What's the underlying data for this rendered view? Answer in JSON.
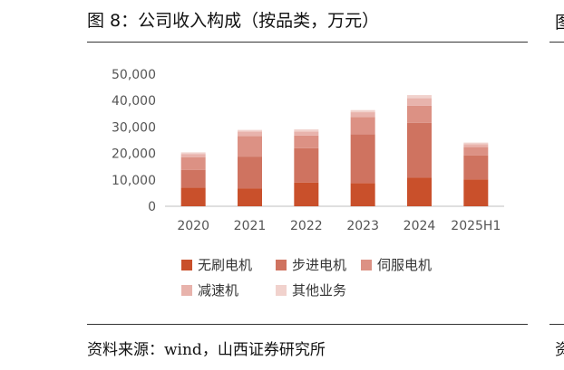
{
  "header": {
    "title": "图 8：公司收入构成（按品类，万元）",
    "source": "资料来源：wind，山西证券研究所",
    "right_glyph_top": "图",
    "right_glyph_bottom": "资"
  },
  "chart_data": {
    "type": "bar",
    "stacked": true,
    "categories": [
      "2020",
      "2021",
      "2022",
      "2023",
      "2024",
      "2025H1"
    ],
    "series": [
      {
        "name": "无刷电机",
        "color": "#c9502b",
        "values": [
          7000,
          6800,
          9000,
          8800,
          10800,
          10200
        ]
      },
      {
        "name": "步进电机",
        "color": "#cf7360",
        "values": [
          6800,
          12000,
          13000,
          18500,
          20800,
          9000
        ]
      },
      {
        "name": "伺服电机",
        "color": "#dc9184",
        "values": [
          4800,
          7800,
          4800,
          6500,
          6500,
          3200
        ]
      },
      {
        "name": "减速机",
        "color": "#e8b3ac",
        "values": [
          1200,
          1700,
          1500,
          1800,
          2800,
          1100
        ]
      },
      {
        "name": "其他业务",
        "color": "#f1d2cd",
        "values": [
          600,
          600,
          800,
          800,
          1200,
          600
        ]
      }
    ],
    "yticks": [
      "50,000",
      "40,000",
      "30,000",
      "20,000",
      "10,000",
      "0"
    ],
    "ylim": [
      0,
      50000
    ],
    "grid": false,
    "legend_position": "bottom"
  }
}
